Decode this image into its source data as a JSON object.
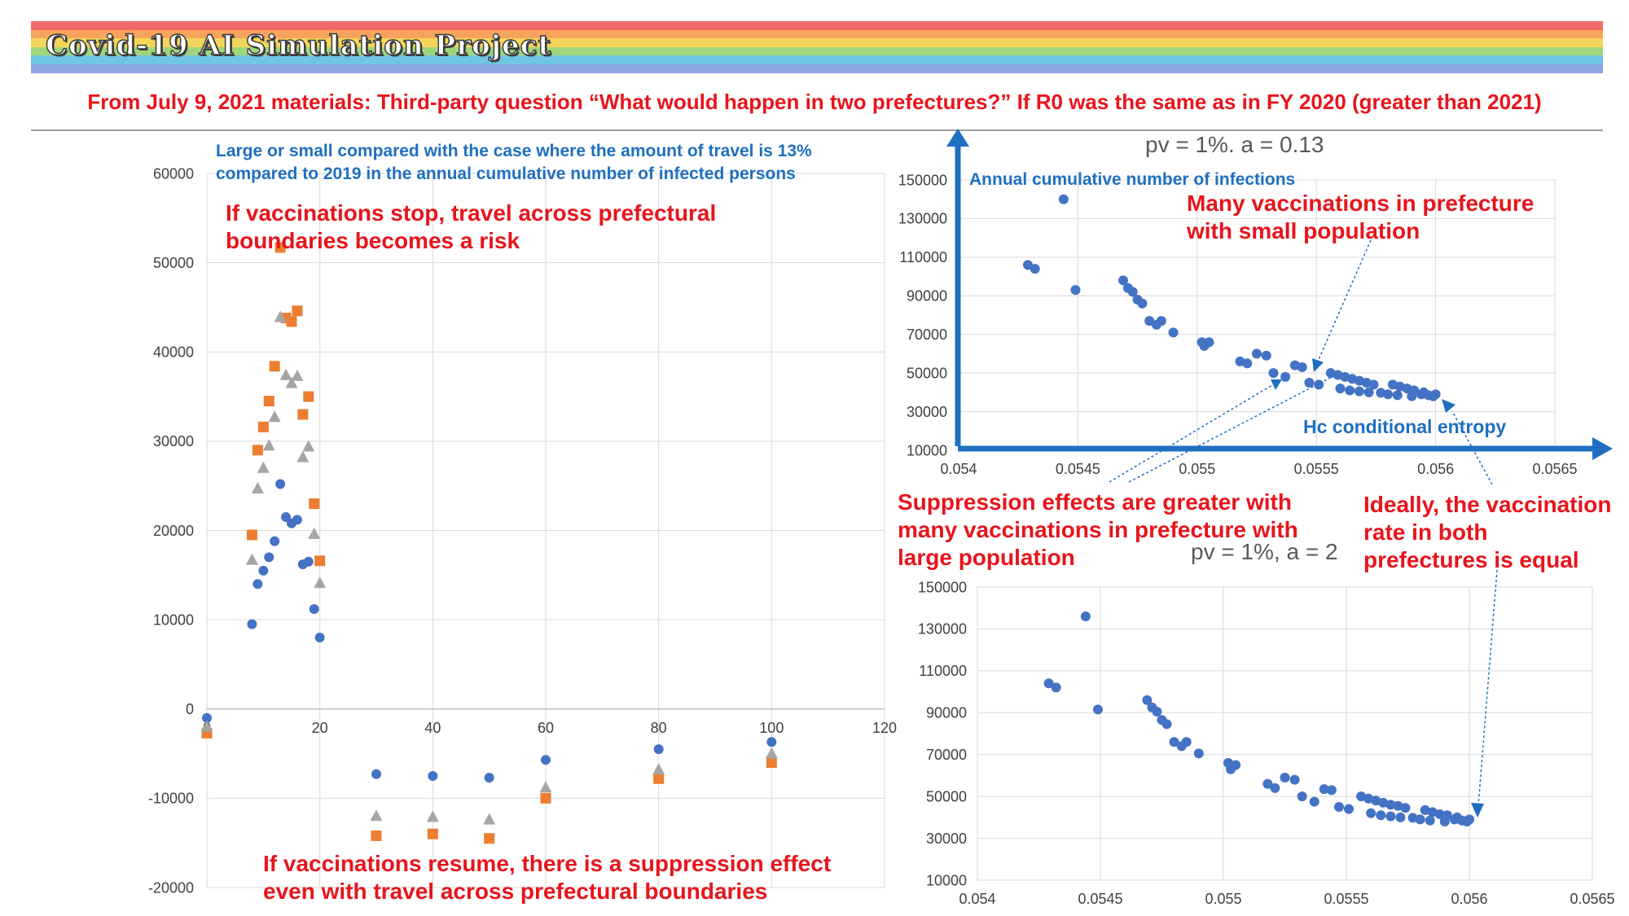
{
  "header": {
    "title": "Covid-19 AI Simulation Project",
    "subtitle": "From July 9, 2021 materials: Third-party question “What would happen in two prefectures?” If R0 was the same as in FY 2020 (greater than 2021)",
    "stripe_colors": [
      "#f26b6b",
      "#f6a35e",
      "#f5d65a",
      "#9fd67a",
      "#6fc6e3",
      "#8da6e0"
    ]
  },
  "annotations": {
    "left_note": [
      "Large or small compared with the case where the amount of travel is 13%",
      "compared to 2019 in the annual cumulative number of infected persons"
    ],
    "left_top": [
      "If vaccinations stop, travel across prefectural",
      "boundaries becomes a risk"
    ],
    "left_bottom": [
      "If vaccinations resume, there is a suppression effect",
      "even with travel across prefectural boundaries"
    ],
    "many_small": [
      "Many vaccinations in prefecture",
      "with small population"
    ],
    "suppression": [
      "Suppression effects are greater with",
      "many vaccinations in prefecture with",
      "large population"
    ],
    "ideally": [
      "Ideally, the vaccination",
      "rate in both",
      "prefectures is equal"
    ]
  },
  "chart_data": [
    {
      "type": "scatter",
      "title": "",
      "xlabel": "",
      "ylabel": "",
      "xlim": [
        0,
        120
      ],
      "ylim": [
        -20000,
        60000
      ],
      "xticks": [
        "0",
        "20",
        "40",
        "60",
        "80",
        "100",
        "120"
      ],
      "yticks": [
        "-20000",
        "-10000",
        "0",
        "10000",
        "20000",
        "30000",
        "40000",
        "50000",
        "60000"
      ],
      "grid": true,
      "series": [
        {
          "color": "#4472c4",
          "marker": "circle",
          "points": [
            [
              0,
              -1000
            ],
            [
              8,
              9500
            ],
            [
              9,
              14000
            ],
            [
              10,
              15500
            ],
            [
              11,
              17000
            ],
            [
              12,
              18800
            ],
            [
              13,
              25200
            ],
            [
              14,
              21500
            ],
            [
              15,
              20800
            ],
            [
              16,
              21200
            ],
            [
              17,
              16200
            ],
            [
              18,
              16500
            ],
            [
              19,
              11200
            ],
            [
              20,
              8000
            ],
            [
              30,
              -7300
            ],
            [
              40,
              -7500
            ],
            [
              50,
              -7700
            ],
            [
              60,
              -5700
            ],
            [
              80,
              -4500
            ],
            [
              100,
              -3700
            ]
          ]
        },
        {
          "color": "#ed7d31",
          "marker": "square",
          "points": [
            [
              0,
              -2700
            ],
            [
              8,
              19500
            ],
            [
              9,
              29000
            ],
            [
              10,
              31600
            ],
            [
              11,
              34500
            ],
            [
              12,
              38400
            ],
            [
              13,
              51700
            ],
            [
              14,
              43800
            ],
            [
              15,
              43400
            ],
            [
              16,
              44600
            ],
            [
              17,
              33000
            ],
            [
              18,
              35000
            ],
            [
              19,
              23000
            ],
            [
              20,
              16600
            ],
            [
              30,
              -14200
            ],
            [
              40,
              -14000
            ],
            [
              50,
              -14500
            ],
            [
              60,
              -10000
            ],
            [
              80,
              -7800
            ],
            [
              100,
              -6000
            ]
          ]
        },
        {
          "color": "#a5a5a5",
          "marker": "triangle",
          "points": [
            [
              0,
              -2000
            ],
            [
              8,
              16700
            ],
            [
              9,
              24700
            ],
            [
              10,
              27000
            ],
            [
              11,
              29500
            ],
            [
              12,
              32700
            ],
            [
              13,
              43900
            ],
            [
              14,
              37400
            ],
            [
              15,
              36500
            ],
            [
              16,
              37300
            ],
            [
              17,
              28200
            ],
            [
              18,
              29400
            ],
            [
              19,
              19600
            ],
            [
              20,
              14100
            ],
            [
              30,
              -12000
            ],
            [
              40,
              -12100
            ],
            [
              50,
              -12400
            ],
            [
              60,
              -8800
            ],
            [
              80,
              -6800
            ],
            [
              100,
              -5000
            ]
          ]
        }
      ]
    },
    {
      "type": "scatter",
      "title": "pv = 1%. a = 0.13",
      "xlabel": "Hc conditional entropy",
      "ylabel": "Annual cumulative number of infections",
      "xlim": [
        0.054,
        0.0565
      ],
      "ylim": [
        10000,
        150000
      ],
      "xticks": [
        "0.054",
        "0.0545",
        "0.055",
        "0.0555",
        "0.056",
        "0.0565"
      ],
      "yticks": [
        "10000",
        "30000",
        "50000",
        "70000",
        "90000",
        "110000",
        "130000",
        "150000"
      ],
      "grid": true,
      "series": [
        {
          "color": "#4472c4",
          "marker": "circle",
          "points": [
            [
              0.05429,
              106000
            ],
            [
              0.05432,
              104000
            ],
            [
              0.05444,
              140000
            ],
            [
              0.05449,
              93000
            ],
            [
              0.05469,
              98000
            ],
            [
              0.05471,
              94000
            ],
            [
              0.05473,
              92000
            ],
            [
              0.05475,
              88000
            ],
            [
              0.05477,
              86000
            ],
            [
              0.0548,
              77000
            ],
            [
              0.05483,
              75000
            ],
            [
              0.05485,
              77000
            ],
            [
              0.0549,
              71000
            ],
            [
              0.05502,
              66000
            ],
            [
              0.05503,
              64000
            ],
            [
              0.05505,
              66000
            ],
            [
              0.05518,
              56000
            ],
            [
              0.05521,
              55000
            ],
            [
              0.05525,
              60000
            ],
            [
              0.05529,
              59000
            ],
            [
              0.05532,
              50000
            ],
            [
              0.05537,
              48000
            ],
            [
              0.05541,
              54000
            ],
            [
              0.05544,
              53000
            ],
            [
              0.05547,
              45000
            ],
            [
              0.05551,
              44000
            ],
            [
              0.05556,
              50000
            ],
            [
              0.05559,
              49000
            ],
            [
              0.05562,
              48000
            ],
            [
              0.05565,
              47000
            ],
            [
              0.05568,
              46000
            ],
            [
              0.05571,
              45000
            ],
            [
              0.05574,
              44000
            ],
            [
              0.0556,
              42000
            ],
            [
              0.05564,
              41000
            ],
            [
              0.05568,
              40500
            ],
            [
              0.05572,
              40000
            ],
            [
              0.05577,
              39800
            ],
            [
              0.05582,
              44000
            ],
            [
              0.05585,
              43000
            ],
            [
              0.05588,
              42000
            ],
            [
              0.0558,
              39000
            ],
            [
              0.05584,
              38500
            ],
            [
              0.0559,
              38000
            ],
            [
              0.05594,
              39000
            ],
            [
              0.05597,
              38500
            ],
            [
              0.05599,
              38000
            ],
            [
              0.056,
              39000
            ],
            [
              0.05591,
              41000
            ],
            [
              0.05595,
              40000
            ]
          ]
        }
      ]
    },
    {
      "type": "scatter",
      "title": "pv = 1%, a = 2",
      "xlabel": "",
      "ylabel": "",
      "xlim": [
        0.054,
        0.0565
      ],
      "ylim": [
        10000,
        150000
      ],
      "xticks": [
        "0.054",
        "0.0545",
        "0.055",
        "0.0555",
        "0.056",
        "0.0565"
      ],
      "yticks": [
        "10000",
        "30000",
        "50000",
        "70000",
        "90000",
        "110000",
        "130000",
        "150000"
      ],
      "grid": true,
      "series": [
        {
          "color": "#4472c4",
          "marker": "circle",
          "points": [
            [
              0.05429,
              104000
            ],
            [
              0.05432,
              102000
            ],
            [
              0.05444,
              136000
            ],
            [
              0.05449,
              91500
            ],
            [
              0.05469,
              96000
            ],
            [
              0.05471,
              92500
            ],
            [
              0.05473,
              90500
            ],
            [
              0.05475,
              86500
            ],
            [
              0.05477,
              84500
            ],
            [
              0.0548,
              76000
            ],
            [
              0.05483,
              74000
            ],
            [
              0.05485,
              76000
            ],
            [
              0.0549,
              70500
            ],
            [
              0.05502,
              66000
            ],
            [
              0.05503,
              63000
            ],
            [
              0.05505,
              65000
            ],
            [
              0.05518,
              56000
            ],
            [
              0.05521,
              54000
            ],
            [
              0.05525,
              59000
            ],
            [
              0.05529,
              58000
            ],
            [
              0.05532,
              50000
            ],
            [
              0.05537,
              47500
            ],
            [
              0.05541,
              53500
            ],
            [
              0.05544,
              53000
            ],
            [
              0.05547,
              45000
            ],
            [
              0.05551,
              44000
            ],
            [
              0.05556,
              50000
            ],
            [
              0.05559,
              49000
            ],
            [
              0.05562,
              48000
            ],
            [
              0.05565,
              47000
            ],
            [
              0.05568,
              46000
            ],
            [
              0.05571,
              45500
            ],
            [
              0.05574,
              44500
            ],
            [
              0.0556,
              42000
            ],
            [
              0.05564,
              41000
            ],
            [
              0.05568,
              40500
            ],
            [
              0.05572,
              40000
            ],
            [
              0.05577,
              39800
            ],
            [
              0.05582,
              43500
            ],
            [
              0.05585,
              42500
            ],
            [
              0.05588,
              41500
            ],
            [
              0.0558,
              39000
            ],
            [
              0.05584,
              38500
            ],
            [
              0.0559,
              38000
            ],
            [
              0.05594,
              39000
            ],
            [
              0.05597,
              38500
            ],
            [
              0.05599,
              38000
            ],
            [
              0.056,
              39000
            ],
            [
              0.05591,
              41000
            ],
            [
              0.05595,
              40000
            ]
          ]
        }
      ]
    }
  ]
}
